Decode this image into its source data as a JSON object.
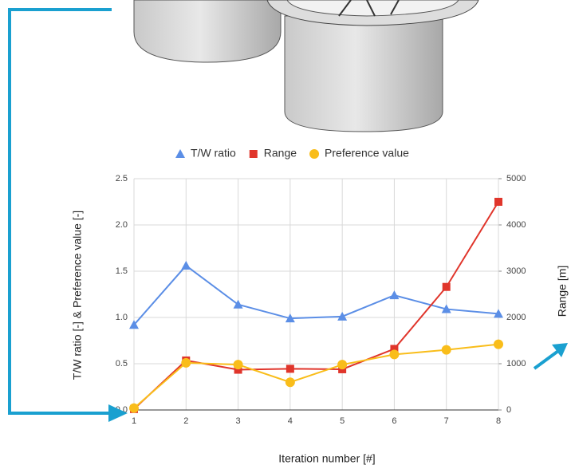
{
  "chart_data": {
    "type": "line",
    "x": [
      1,
      2,
      3,
      4,
      5,
      6,
      7,
      8
    ],
    "xlim": [
      1,
      8
    ],
    "xticks": [
      1,
      2,
      3,
      4,
      5,
      6,
      7,
      8
    ],
    "ylim": [
      0,
      2.5
    ],
    "yticks": [
      {
        "value": 0,
        "label": "0.0"
      },
      0.5,
      {
        "value": 1,
        "label": "1.0"
      },
      1.5,
      {
        "value": 2,
        "label": "2.0"
      },
      2.5
    ],
    "y2lim": [
      0,
      5000
    ],
    "y2ticks": [
      0,
      1000,
      2000,
      3000,
      4000,
      5000
    ],
    "xlabel": "Iteration number [#]",
    "ylabel": "T/W ratio [-] & Preference value [-]",
    "y2label": "Range [m]",
    "grid": true,
    "legend": "top",
    "series": [
      {
        "name": "T/W ratio",
        "color": "#5b8ee6",
        "marker": "triangle",
        "values": [
          0.92,
          1.56,
          1.14,
          0.99,
          1.01,
          1.24,
          1.09,
          1.04
        ]
      },
      {
        "name": "Range",
        "color": "#e0352b",
        "marker": "square",
        "axis": "y2",
        "values": [
          20,
          1070,
          870,
          890,
          880,
          1320,
          2660,
          4500
        ]
      },
      {
        "name": "Preference value",
        "color": "#f9bd1a",
        "marker": "circle",
        "values": [
          0.02,
          0.51,
          0.49,
          0.3,
          0.49,
          0.6,
          0.65,
          0.71
        ]
      }
    ]
  }
}
